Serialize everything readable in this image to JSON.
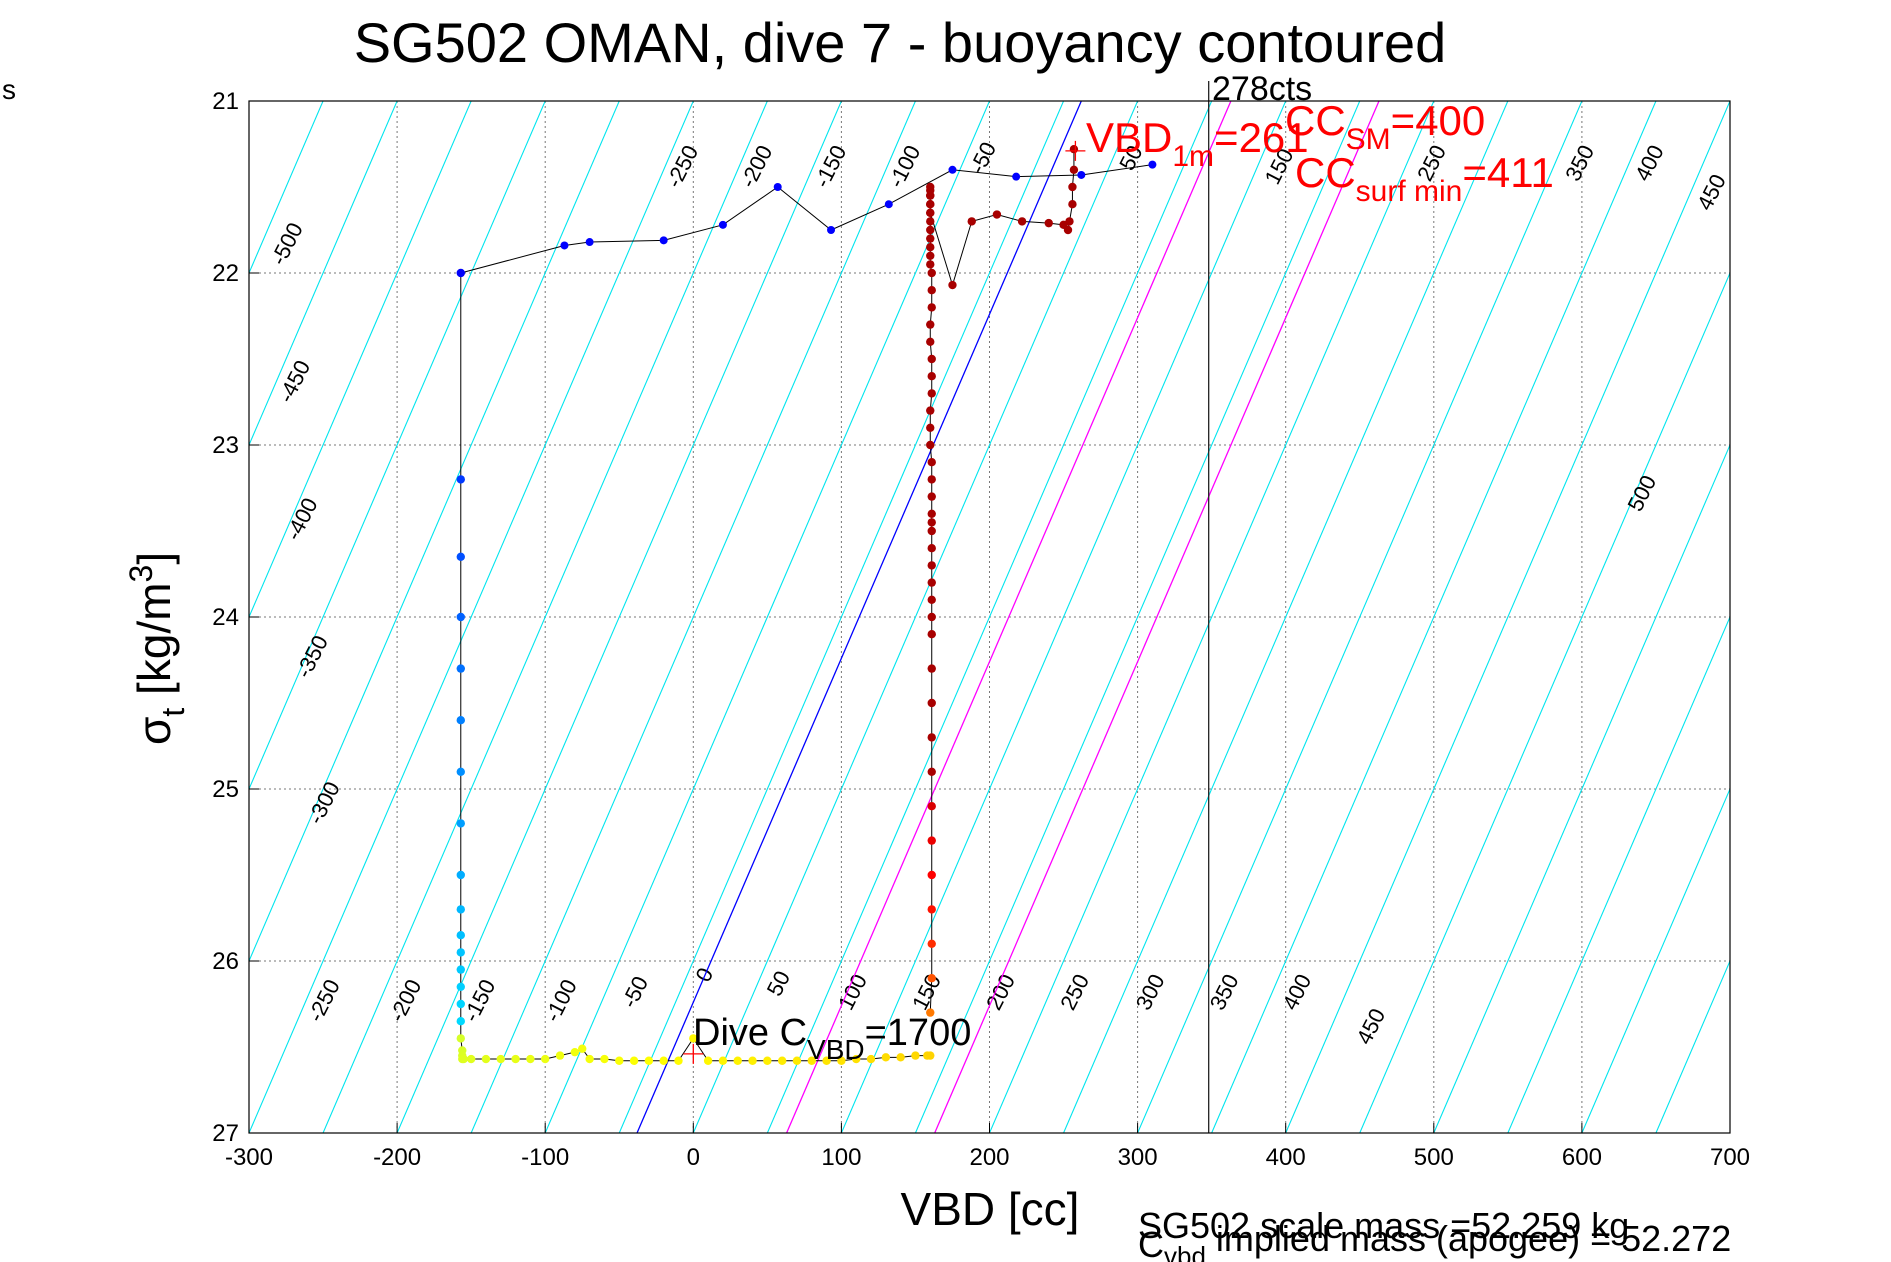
{
  "corner_label": "s",
  "chart_data": {
    "type": "scatter",
    "title": "SG502 OMAN, dive 7 - buoyancy contoured",
    "xlabel": "VBD [cc]",
    "ylabel": {
      "main": "σ",
      "sub": "t",
      "unit": " [kg/m",
      "sup": "3",
      "close": "]"
    },
    "xlim": [
      -300,
      700
    ],
    "ylim": [
      27,
      21
    ],
    "x_ticks": [
      -300,
      -200,
      -100,
      0,
      100,
      200,
      300,
      400,
      500,
      600,
      700
    ],
    "y_ticks": [
      21,
      22,
      23,
      24,
      25,
      26,
      27
    ],
    "grid": true,
    "contours": {
      "top_labels": [
        {
          "text": "-500",
          "x": -270,
          "y": 21.85
        },
        {
          "text": "-450",
          "x": -265,
          "y": 22.65
        },
        {
          "text": "-400",
          "x": -260,
          "y": 23.45
        },
        {
          "text": "-350",
          "x": -253,
          "y": 24.25
        },
        {
          "text": "-300",
          "x": -245,
          "y": 25.1
        },
        {
          "text": "-250",
          "x": -3,
          "y": 21.4
        },
        {
          "text": "-200",
          "x": 47,
          "y": 21.4
        },
        {
          "text": "-150",
          "x": 97,
          "y": 21.4
        },
        {
          "text": "-100",
          "x": 147,
          "y": 21.4
        },
        {
          "text": "-50",
          "x": 200,
          "y": 21.35
        },
        {
          "text": "50",
          "x": 300,
          "y": 21.35
        },
        {
          "text": "150",
          "x": 400,
          "y": 21.4
        },
        {
          "text": "250",
          "x": 503,
          "y": 21.38
        },
        {
          "text": "350",
          "x": 603,
          "y": 21.38
        },
        {
          "text": "400",
          "x": 650,
          "y": 21.38
        },
        {
          "text": "450",
          "x": 692,
          "y": 21.55
        },
        {
          "text": "500",
          "x": 645,
          "y": 23.3
        }
      ],
      "bottom_labels": [
        {
          "text": "-250",
          "x": -245,
          "y": 26.25
        },
        {
          "text": "-200",
          "x": -190,
          "y": 26.25
        },
        {
          "text": "-150",
          "x": -140,
          "y": 26.25
        },
        {
          "text": "-100",
          "x": -85,
          "y": 26.25
        },
        {
          "text": "-50",
          "x": -35,
          "y": 26.2
        },
        {
          "text": "0",
          "x": 12,
          "y": 26.1
        },
        {
          "text": "50",
          "x": 62,
          "y": 26.15
        },
        {
          "text": "100",
          "x": 112,
          "y": 26.2
        },
        {
          "text": "150",
          "x": 162,
          "y": 26.2
        },
        {
          "text": "200",
          "x": 212,
          "y": 26.2
        },
        {
          "text": "250",
          "x": 262,
          "y": 26.2
        },
        {
          "text": "300",
          "x": 313,
          "y": 26.2
        },
        {
          "text": "350",
          "x": 363,
          "y": 26.2
        },
        {
          "text": "400",
          "x": 412,
          "y": 26.2
        },
        {
          "text": "450",
          "x": 462,
          "y": 26.4
        }
      ]
    },
    "lines": {
      "blue_line": {
        "x": [
          -38,
          262
        ],
        "y": [
          27,
          21
        ]
      },
      "magenta_1": {
        "x": [
          63,
          363
        ],
        "y": [
          27,
          21
        ]
      },
      "magenta_2": {
        "x": [
          163,
          463
        ],
        "y": [
          27,
          21
        ]
      },
      "black_vertical_x": 348
    },
    "annotations": {
      "cts": "278cts",
      "vbd1m": {
        "main": "VBD",
        "sub": "1m",
        "val": "=261"
      },
      "cc_sm": {
        "main": "CC",
        "sub": "SM",
        "val": "=400"
      },
      "cc_surf": {
        "main": "CC",
        "sub": "surf min",
        "val": "=411"
      },
      "dive_c": {
        "main": "Dive C",
        "sub": "VBD",
        "val": "=1700"
      },
      "scale_mass": "SG502 scale mass =52.259 kg",
      "implied": {
        "main": "C",
        "sub": "vbd",
        "val": " implied mass (apogee) = 52.272"
      }
    },
    "markers": [
      {
        "x": 0,
        "y": 26.54
      },
      {
        "x": 258,
        "y": 21.29
      }
    ],
    "descent_path": {
      "x": [
        -157,
        -157,
        -157,
        -157,
        -157,
        -157,
        -157,
        -157,
        -157,
        -157,
        -157,
        -157,
        -157,
        -157,
        -157,
        -157,
        -157,
        -156,
        -156,
        -156,
        -155,
        -150,
        -140,
        -130,
        -120,
        -110,
        -100,
        -90,
        -80,
        -75,
        -70,
        -60,
        -50,
        -40,
        -30,
        -20,
        -10,
        0,
        10,
        20,
        30,
        40,
        50,
        60,
        70,
        80,
        90,
        100,
        110,
        120,
        130,
        140,
        150,
        158,
        160
      ],
      "y": [
        22.0,
        23.2,
        23.65,
        24.0,
        24.3,
        24.6,
        24.9,
        25.2,
        25.5,
        25.7,
        25.85,
        25.95,
        26.05,
        26.15,
        26.25,
        26.35,
        26.45,
        26.52,
        26.55,
        26.57,
        26.57,
        26.57,
        26.57,
        26.57,
        26.57,
        26.57,
        26.57,
        26.55,
        26.53,
        26.51,
        26.57,
        26.57,
        26.58,
        26.58,
        26.58,
        26.58,
        26.58,
        26.45,
        26.58,
        26.58,
        26.58,
        26.58,
        26.58,
        26.58,
        26.58,
        26.58,
        26.58,
        26.58,
        26.57,
        26.57,
        26.56,
        26.56,
        26.55,
        26.55,
        26.55
      ]
    },
    "ascent_path": {
      "x": [
        160,
        161,
        161,
        161,
        161,
        161,
        161,
        161,
        161,
        161,
        161,
        161,
        161,
        161,
        161,
        161,
        161,
        161,
        161,
        161,
        161,
        161,
        161,
        160,
        160,
        160,
        161,
        161,
        161,
        160,
        160,
        161,
        161,
        161,
        160,
        160,
        160,
        160,
        160,
        160,
        160,
        160,
        160,
        160,
        160,
        160,
        160,
        160,
        175,
        188,
        205,
        222,
        240,
        250,
        253,
        254,
        256,
        256,
        257,
        257
      ],
      "y": [
        26.3,
        26.1,
        25.9,
        25.7,
        25.5,
        25.3,
        25.1,
        24.9,
        24.7,
        24.5,
        24.3,
        24.1,
        24.0,
        23.9,
        23.8,
        23.7,
        23.6,
        23.5,
        23.45,
        23.4,
        23.3,
        23.2,
        23.1,
        23.0,
        22.9,
        22.8,
        22.7,
        22.6,
        22.5,
        22.4,
        22.3,
        22.2,
        22.1,
        22.0,
        21.95,
        21.9,
        21.85,
        21.8,
        21.75,
        21.7,
        21.65,
        21.6,
        21.55,
        21.52,
        21.5,
        21.55,
        21.6,
        21.65,
        22.07,
        21.7,
        21.66,
        21.7,
        21.71,
        21.72,
        21.75,
        21.7,
        21.6,
        21.5,
        21.4,
        21.28
      ]
    },
    "surface_path": {
      "x": [
        -157,
        -87,
        -70,
        -20,
        20,
        57,
        93,
        132,
        175,
        218,
        262,
        310
      ],
      "y": [
        22.0,
        21.84,
        21.82,
        21.81,
        21.72,
        21.5,
        21.75,
        21.6,
        21.4,
        21.44,
        21.43,
        21.37
      ]
    }
  }
}
